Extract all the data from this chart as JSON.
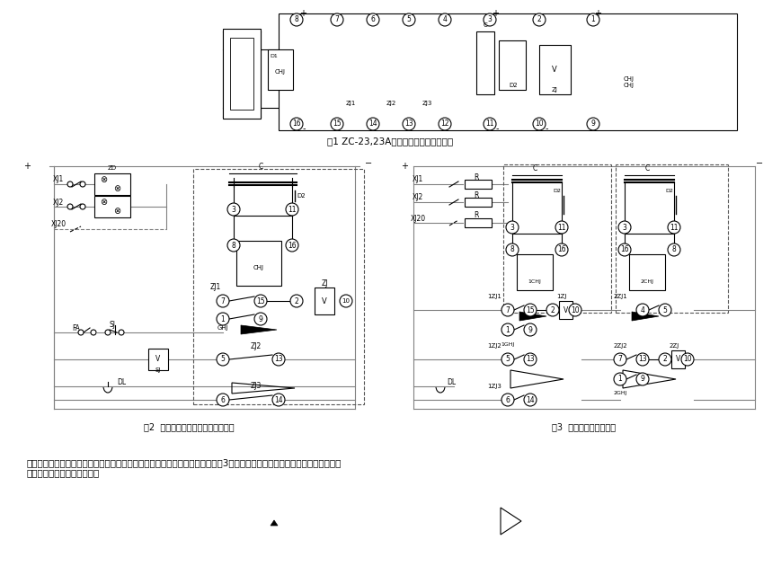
{
  "title1": "图1 ZC-23,23A型冲击继电器内部接线图",
  "title2": "图2  电压手动复归和延时复归接线图",
  "title3": "图3  冲击自动复归接线图",
  "note": "注：如果需要冲击自动复归的回路中，可以利用两台冲击继电器反串接线（如图3）来实现，但信号回路中必须为线性电阻的情\n况下，可实现冲击自动复归。",
  "bg_color": "#ffffff",
  "line_color": "#000000",
  "gray_line": "#808080",
  "dash_line": "#555555"
}
